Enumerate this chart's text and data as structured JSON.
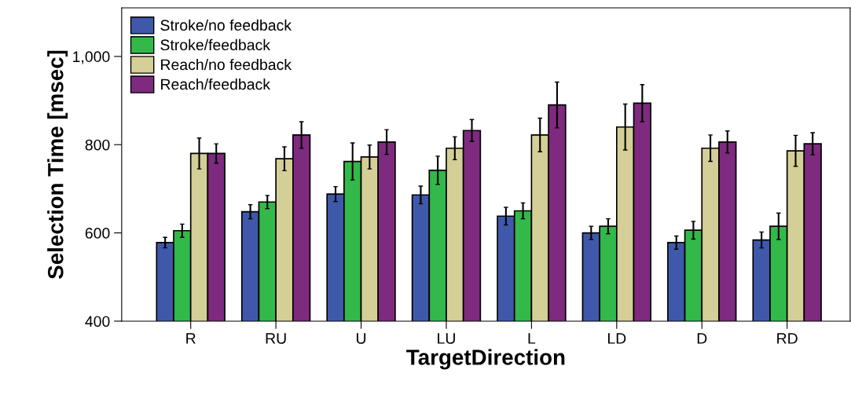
{
  "chart_data": {
    "type": "bar",
    "xlabel": "TargetDirection",
    "ylabel": "Selection Time [msec]",
    "categories": [
      "R",
      "RU",
      "U",
      "LU",
      "L",
      "LD",
      "D",
      "RD"
    ],
    "series": [
      {
        "name": "Stroke/no feedback",
        "color": "#3f58aa",
        "values": [
          578,
          648,
          688,
          686,
          638,
          600,
          578,
          584
        ],
        "errors": [
          12,
          16,
          17,
          20,
          20,
          15,
          15,
          18
        ]
      },
      {
        "name": "Stroke/feedback",
        "color": "#33b84a",
        "values": [
          605,
          670,
          762,
          742,
          650,
          615,
          606,
          615
        ],
        "errors": [
          15,
          15,
          42,
          32,
          18,
          17,
          20,
          30
        ]
      },
      {
        "name": "Reach/no feedback",
        "color": "#d4ce97",
        "values": [
          780,
          768,
          772,
          792,
          822,
          840,
          792,
          786
        ],
        "errors": [
          35,
          27,
          27,
          26,
          38,
          52,
          30,
          35
        ]
      },
      {
        "name": "Reach/feedback",
        "color": "#7e2a7e",
        "values": [
          780,
          822,
          806,
          832,
          890,
          894,
          806,
          802
        ],
        "errors": [
          22,
          30,
          28,
          25,
          52,
          42,
          25,
          25
        ]
      }
    ],
    "ylim": [
      400,
      1110
    ],
    "yticks": [
      400,
      600,
      800,
      {
        "value": 1000,
        "label": "1,000"
      }
    ],
    "grid": false,
    "legend": "top left"
  }
}
